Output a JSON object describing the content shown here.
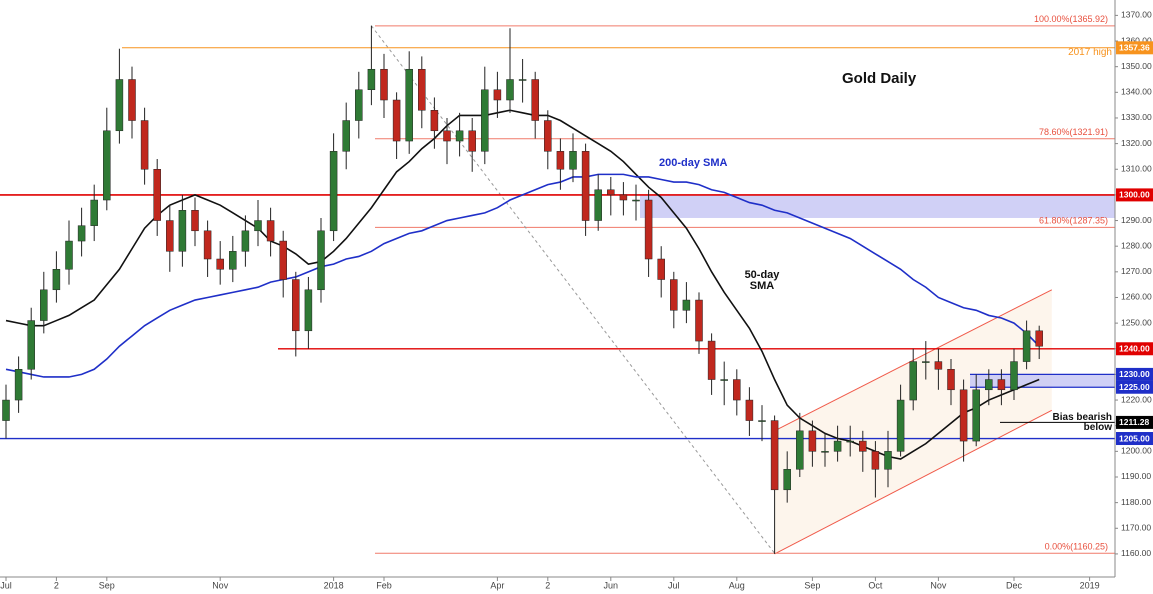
{
  "chart_data": {
    "type": "candlestick",
    "title": "Gold Daily",
    "categories": [
      "Jul",
      null,
      null,
      null,
      "2",
      null,
      null,
      null,
      "Sep",
      null,
      null,
      null,
      null,
      null,
      null,
      null,
      null,
      "Nov",
      null,
      null,
      null,
      null,
      null,
      null,
      null,
      null,
      "2018",
      null,
      null,
      null,
      "Feb",
      null,
      null,
      null,
      null,
      null,
      null,
      null,
      null,
      "Apr",
      null,
      null,
      null,
      "2",
      null,
      null,
      null,
      null,
      "Jun",
      null,
      null,
      null,
      null,
      "Jul",
      null,
      null,
      null,
      null,
      "Aug",
      null,
      null,
      null,
      null,
      null,
      "Sep",
      null,
      null,
      null,
      null,
      "Oct",
      null,
      null,
      null,
      null,
      "Nov",
      null,
      null,
      null,
      null,
      null,
      "Dec",
      null,
      null,
      null,
      null,
      null,
      "2019"
    ],
    "open": [
      1212,
      1220,
      1232,
      1251,
      1263,
      1271,
      1282,
      1288,
      1298,
      1325,
      1345,
      1329,
      1310,
      1290,
      1278,
      1294,
      1286,
      1275,
      1271,
      1278,
      1286,
      1290,
      1282,
      1267,
      1247,
      1263,
      1286,
      1317,
      1329,
      1341,
      1349,
      1337,
      1321,
      1349,
      1333,
      1325,
      1321,
      1325,
      1317,
      1341,
      1337,
      1345,
      1345,
      1329,
      1317,
      1310,
      1317,
      1290,
      1302,
      1300,
      1298,
      1298,
      1275,
      1267,
      1255,
      1259,
      1243,
      1228,
      1228,
      1220,
      1212,
      1212,
      1185,
      1193,
      1208,
      1200,
      1200,
      1204,
      1204,
      1200,
      1193,
      1200,
      1220,
      1235,
      1235,
      1232,
      1224,
      1204,
      1224,
      1228,
      1224,
      1235,
      1247,
      null,
      null,
      null,
      null
    ],
    "high": [
      1226,
      1237,
      1256,
      1270,
      1278,
      1290,
      1295,
      1304,
      1334,
      1357,
      1350,
      1334,
      1314,
      1296,
      1300,
      1299,
      1290,
      1282,
      1284,
      1292,
      1298,
      1295,
      1286,
      1270,
      1268,
      1291,
      1324,
      1336,
      1348,
      1366,
      1355,
      1340,
      1356,
      1354,
      1338,
      1330,
      1332,
      1330,
      1350,
      1348,
      1365,
      1353,
      1348,
      1333,
      1322,
      1324,
      1320,
      1308,
      1307,
      1305,
      1304,
      1302,
      1280,
      1270,
      1266,
      1262,
      1246,
      1235,
      1232,
      1225,
      1218,
      1214,
      1200,
      1215,
      1212,
      1207,
      1210,
      1210,
      1208,
      1204,
      1208,
      1226,
      1240,
      1243,
      1240,
      1236,
      1228,
      1230,
      1232,
      1232,
      1240,
      1251,
      1249,
      null,
      null,
      null,
      null
    ],
    "low": [
      1205,
      1215,
      1228,
      1246,
      1258,
      1265,
      1276,
      1282,
      1294,
      1320,
      1322,
      1304,
      1284,
      1270,
      1272,
      1280,
      1268,
      1265,
      1266,
      1272,
      1280,
      1276,
      1260,
      1237,
      1240,
      1258,
      1282,
      1310,
      1322,
      1335,
      1330,
      1314,
      1316,
      1326,
      1318,
      1312,
      1315,
      1309,
      1312,
      1330,
      1332,
      1336,
      1322,
      1310,
      1302,
      1305,
      1284,
      1286,
      1292,
      1292,
      1290,
      1268,
      1260,
      1248,
      1250,
      1238,
      1222,
      1218,
      1214,
      1206,
      1204,
      1160,
      1180,
      1190,
      1194,
      1194,
      1196,
      1198,
      1192,
      1182,
      1186,
      1198,
      1216,
      1228,
      1224,
      1218,
      1196,
      1202,
      1218,
      1218,
      1220,
      1232,
      1236,
      null,
      null,
      null,
      null
    ],
    "close": [
      1220,
      1232,
      1251,
      1263,
      1271,
      1282,
      1288,
      1298,
      1325,
      1345,
      1329,
      1310,
      1290,
      1278,
      1294,
      1286,
      1275,
      1271,
      1278,
      1286,
      1290,
      1282,
      1267,
      1247,
      1263,
      1286,
      1317,
      1329,
      1341,
      1349,
      1337,
      1321,
      1349,
      1333,
      1325,
      1321,
      1325,
      1317,
      1341,
      1337,
      1345,
      1345,
      1329,
      1317,
      1310,
      1317,
      1290,
      1302,
      1300,
      1298,
      1298,
      1275,
      1267,
      1255,
      1259,
      1243,
      1228,
      1228,
      1220,
      1212,
      1212,
      1185,
      1193,
      1208,
      1200,
      1200,
      1204,
      1204,
      1200,
      1193,
      1200,
      1220,
      1235,
      1235,
      1232,
      1224,
      1204,
      1224,
      1228,
      1224,
      1235,
      1247,
      1241,
      null,
      null,
      null,
      null
    ],
    "up_color": "#2f7a35",
    "down_color": "#c0281e",
    "series": [
      {
        "name": "50-day SMA",
        "color": "#111111",
        "values": [
          1251,
          1250,
          1249,
          1249,
          1251,
          1253,
          1256,
          1259,
          1265,
          1271,
          1279,
          1287,
          1292,
          1296,
          1298,
          1300,
          1298,
          1296,
          1293,
          1290,
          1287,
          1282,
          1280,
          1277,
          1273,
          1274,
          1278,
          1283,
          1289,
          1295,
          1302,
          1309,
          1313,
          1318,
          1322,
          1327,
          1331,
          1331,
          1331,
          1332,
          1333,
          1332,
          1331,
          1331,
          1329,
          1326,
          1323,
          1320,
          1317,
          1313,
          1308,
          1303,
          1299,
          1293,
          1287,
          1279,
          1270,
          1262,
          1255,
          1248,
          1239,
          1228,
          1218,
          1213,
          1210,
          1207,
          1205,
          1204,
          1202,
          1200,
          1198,
          1197,
          1200,
          1203,
          1207,
          1211,
          1215,
          1217,
          1220,
          1222,
          1224,
          1226,
          1228,
          null,
          null,
          null,
          null
        ]
      },
      {
        "name": "200-day SMA",
        "color": "#1f2fc8",
        "values": [
          1232,
          1231,
          1230,
          1229,
          1229,
          1229,
          1230,
          1232,
          1236,
          1241,
          1245,
          1249,
          1252,
          1255,
          1257,
          1259,
          1260,
          1261,
          1262,
          1263,
          1264,
          1266,
          1267,
          1268,
          1270,
          1272,
          1273,
          1275,
          1276,
          1278,
          1281,
          1283,
          1285,
          1286,
          1288,
          1290,
          1291,
          1292,
          1293,
          1295,
          1298,
          1300,
          1302,
          1304,
          1305,
          1307,
          1307,
          1308,
          1308,
          1308,
          1307,
          1307,
          1306,
          1305,
          1305,
          1304,
          1302,
          1301,
          1299,
          1297,
          1296,
          1294,
          1293,
          1291,
          1289,
          1287,
          1285,
          1283,
          1280,
          1277,
          1274,
          1271,
          1267,
          1264,
          1260,
          1258,
          1256,
          1255,
          1253,
          1252,
          1250,
          1246,
          1241,
          null,
          null,
          null,
          null
        ]
      }
    ],
    "levels": [
      {
        "value": 1357.36,
        "label": "1357.36",
        "color": "#f7931e",
        "note": "2017 high"
      },
      {
        "value": 1300,
        "label": "1300.00",
        "color": "#e00000"
      },
      {
        "value": 1240,
        "label": "1240.00",
        "color": "#e00000"
      },
      {
        "value": 1230,
        "label": "1230.00",
        "color": "#1f2fc8"
      },
      {
        "value": 1225,
        "label": "1225.00",
        "color": "#1f2fc8"
      },
      {
        "value": 1211.28,
        "label": "1211.28",
        "color": "#000000",
        "note": "Bias bearish below"
      },
      {
        "value": 1205,
        "label": "1205.00",
        "color": "#1f2fc8"
      }
    ],
    "fib": [
      {
        "value": 1365.92,
        "label": "100.00%(1365.92)"
      },
      {
        "value": 1321.91,
        "label": "78.60%(1321.91)"
      },
      {
        "value": 1287.35,
        "label": "61.80%(1287.35)"
      },
      {
        "value": 1160.25,
        "label": "0.00%(1160.25)"
      }
    ],
    "zone_low": 1291,
    "channel": {
      "lower": [
        1160,
        1216
      ],
      "upper": [
        1208,
        1263
      ]
    },
    "ylim": [
      1151,
      1376
    ],
    "yticks": [
      {
        "value": 1160,
        "label": "1160.00"
      },
      {
        "value": 1170,
        "label": "1170.00"
      },
      {
        "value": 1180,
        "label": "1180.00"
      },
      {
        "value": 1190,
        "label": "1190.00"
      },
      {
        "value": 1200,
        "label": "1200.00"
      },
      {
        "value": 1210,
        "label": "1210.00"
      },
      {
        "value": 1220,
        "label": "1220.00"
      },
      {
        "value": 1230,
        "label": "1230.00"
      },
      {
        "value": 1240,
        "label": "1240.00"
      },
      {
        "value": 1250,
        "label": "1250.00"
      },
      {
        "value": 1260,
        "label": "1260.00"
      },
      {
        "value": 1270,
        "label": "1270.00"
      },
      {
        "value": 1280,
        "label": "1280.00"
      },
      {
        "value": 1290,
        "label": "1290.00"
      },
      {
        "value": 1300,
        "label": "1300.00"
      },
      {
        "value": 1310,
        "label": "1310.00"
      },
      {
        "value": 1320,
        "label": "1320.00"
      },
      {
        "value": 1330,
        "label": "1330.00"
      },
      {
        "value": 1340,
        "label": "1340.00"
      },
      {
        "value": 1350,
        "label": "1350.00"
      },
      {
        "value": 1360,
        "label": "1360.00"
      },
      {
        "value": 1370,
        "label": "1370.00"
      }
    ]
  }
}
